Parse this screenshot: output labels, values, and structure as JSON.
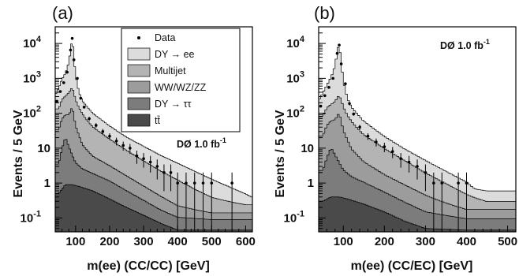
{
  "colors": {
    "DY_ee": "#dcdcdc",
    "Multijet": "#b4b4b4",
    "Dibosons": "#9c9c9c",
    "DY_tautau": "#7c7c7c",
    "ttbar": "#4a4a4a",
    "data": "#000000"
  },
  "chart_data": [
    {
      "type": "stacked-histogram",
      "panel_label": "(a)",
      "xlabel": "m(ee) (CC/CC) [GeV]",
      "ylabel": "Events / 5 GeV",
      "xlim": [
        40,
        620
      ],
      "ylim": [
        0.04,
        30000
      ],
      "log_y": true,
      "xticks": [
        100,
        200,
        300,
        400,
        500,
        600
      ],
      "yticks": [
        {
          "value": 0.1,
          "base": "10",
          "exp": "-1"
        },
        {
          "value": 1,
          "base": "1",
          "exp": ""
        },
        {
          "value": 10,
          "base": "10",
          "exp": ""
        },
        {
          "value": 100,
          "base": "10",
          "exp": "2"
        },
        {
          "value": 1000,
          "base": "10",
          "exp": "3"
        },
        {
          "value": 10000,
          "base": "10",
          "exp": "4"
        }
      ],
      "bin_width_gev": 5,
      "lumi": {
        "text": "DØ 1.0 fb",
        "sup": "-1",
        "position": "middle-right"
      },
      "legend": {
        "position": "top-right",
        "entries": [
          {
            "label": "Data",
            "marker": "point",
            "color_key": "data"
          },
          {
            "label": "DY → ee",
            "marker": "box",
            "color_key": "DY_ee"
          },
          {
            "label": "Multijet",
            "marker": "box",
            "color_key": "Multijet"
          },
          {
            "label": "WW/WZ/ZZ",
            "marker": "box",
            "color_key": "Dibosons"
          },
          {
            "label": "DY → ττ",
            "marker": "box",
            "color_key": "DY_tautau"
          },
          {
            "label": "tt̄",
            "marker": "box",
            "color_key": "ttbar"
          }
        ]
      },
      "series": [
        {
          "name": "tt̄",
          "color_key": "ttbar",
          "x": [
            50,
            70,
            90,
            110,
            150,
            200,
            250,
            300,
            350,
            400,
            500
          ],
          "y": [
            0.5,
            0.9,
            0.9,
            0.8,
            0.6,
            0.35,
            0.2,
            0.12,
            0.07,
            0.045,
            0.045
          ]
        },
        {
          "name": "DY → ττ",
          "color_key": "DY_tautau",
          "x": [
            50,
            60,
            70,
            80,
            100,
            120,
            150,
            200,
            250,
            300,
            350,
            400,
            500
          ],
          "y": [
            3,
            9,
            20,
            10,
            3,
            1.8,
            1.3,
            0.8,
            0.4,
            0.2,
            0.1,
            0.06,
            0.045
          ]
        },
        {
          "name": "WW/WZ/ZZ",
          "color_key": "Dibosons",
          "x": [
            50,
            60,
            70,
            80,
            90,
            100,
            120,
            150,
            200,
            250,
            300,
            350,
            400,
            500
          ],
          "y": [
            30,
            60,
            70,
            80,
            150,
            40,
            10,
            4,
            2,
            1,
            0.5,
            0.25,
            0.12,
            0.05
          ]
        },
        {
          "name": "Multijet",
          "color_key": "Multijet",
          "x": [
            50,
            60,
            70,
            80,
            85,
            90,
            95,
            100,
            110,
            130,
            150,
            200,
            250,
            300,
            350,
            400,
            450,
            500,
            600
          ],
          "y": [
            100,
            180,
            220,
            300,
            350,
            400,
            300,
            200,
            120,
            60,
            35,
            15,
            7,
            3.5,
            1.8,
            1,
            0.5,
            0.25,
            0.1
          ]
        },
        {
          "name": "DY → ee",
          "color_key": "DY_ee",
          "x": [
            40,
            50,
            60,
            70,
            75,
            80,
            85,
            88,
            90,
            92,
            95,
            100,
            110,
            120,
            150,
            200,
            250,
            300,
            350,
            400,
            450,
            500,
            550,
            600,
            620
          ],
          "y": [
            200,
            400,
            700,
            1100,
            1600,
            2600,
            6000,
            10000,
            14000,
            9000,
            3500,
            1000,
            250,
            130,
            60,
            25,
            12,
            7,
            4,
            2.5,
            1.5,
            0.9,
            0.5,
            0.25,
            0.15
          ]
        }
      ],
      "data_points": {
        "x": [
          45,
          55,
          65,
          75,
          85,
          90,
          95,
          105,
          115,
          125,
          140,
          160,
          180,
          200,
          220,
          240,
          260,
          280,
          300,
          320,
          340,
          360,
          380,
          400,
          425,
          450,
          475,
          500,
          560
        ],
        "y": [
          220,
          420,
          750,
          1500,
          6500,
          14000,
          3400,
          1000,
          270,
          150,
          70,
          45,
          30,
          22,
          16,
          12,
          10,
          6,
          5,
          4,
          3,
          2,
          2,
          1,
          1,
          1,
          1,
          1,
          1
        ]
      }
    },
    {
      "type": "stacked-histogram",
      "panel_label": "(b)",
      "xlabel": "m(ee) (CC/EC) [GeV]",
      "ylabel": "Events / 5 GeV",
      "xlim": [
        40,
        520
      ],
      "ylim": [
        0.04,
        30000
      ],
      "log_y": true,
      "xticks": [
        100,
        200,
        300,
        400,
        500
      ],
      "yticks": [
        {
          "value": 0.1,
          "base": "10",
          "exp": "-1"
        },
        {
          "value": 1,
          "base": "1",
          "exp": ""
        },
        {
          "value": 10,
          "base": "10",
          "exp": ""
        },
        {
          "value": 100,
          "base": "10",
          "exp": "2"
        },
        {
          "value": 1000,
          "base": "10",
          "exp": "3"
        },
        {
          "value": 10000,
          "base": "10",
          "exp": "4"
        }
      ],
      "bin_width_gev": 5,
      "lumi": {
        "text": "DØ 1.0 fb",
        "sup": "-1",
        "position": "top-right"
      },
      "series": [
        {
          "name": "tt̄",
          "color_key": "ttbar",
          "x": [
            50,
            70,
            90,
            110,
            150,
            200,
            250,
            300,
            400
          ],
          "y": [
            0.3,
            0.4,
            0.4,
            0.35,
            0.25,
            0.15,
            0.08,
            0.05,
            0.045
          ]
        },
        {
          "name": "DY → ττ",
          "color_key": "DY_tautau",
          "x": [
            50,
            60,
            70,
            80,
            100,
            120,
            150,
            200,
            250,
            300,
            400
          ],
          "y": [
            2,
            5,
            10,
            6,
            2,
            1.2,
            0.8,
            0.4,
            0.2,
            0.1,
            0.05
          ]
        },
        {
          "name": "WW/WZ/ZZ",
          "color_key": "Dibosons",
          "x": [
            50,
            60,
            70,
            80,
            90,
            100,
            120,
            150,
            200,
            250,
            300,
            350,
            400
          ],
          "y": [
            20,
            40,
            50,
            60,
            100,
            30,
            8,
            3,
            1.2,
            0.6,
            0.3,
            0.15,
            0.08
          ]
        },
        {
          "name": "Multijet",
          "color_key": "Multijet",
          "x": [
            50,
            60,
            70,
            80,
            85,
            90,
            95,
            100,
            110,
            130,
            150,
            200,
            250,
            300,
            350,
            400,
            450
          ],
          "y": [
            60,
            100,
            120,
            150,
            200,
            220,
            180,
            120,
            70,
            35,
            20,
            8,
            3.5,
            1.5,
            0.7,
            0.3,
            0.12
          ]
        },
        {
          "name": "DY → ee",
          "color_key": "DY_ee",
          "x": [
            40,
            50,
            60,
            70,
            75,
            80,
            85,
            88,
            90,
            92,
            95,
            100,
            110,
            120,
            150,
            200,
            250,
            300,
            350,
            400,
            420
          ],
          "y": [
            150,
            300,
            500,
            900,
            1300,
            2200,
            5000,
            8000,
            9000,
            6000,
            2500,
            700,
            180,
            90,
            35,
            12,
            5,
            2.5,
            1.2,
            0.6,
            0.3
          ]
        }
      ],
      "data_points": {
        "x": [
          45,
          55,
          65,
          75,
          85,
          90,
          95,
          105,
          115,
          125,
          140,
          160,
          180,
          200,
          220,
          240,
          260,
          280,
          300,
          320,
          340,
          380,
          400
        ],
        "y": [
          160,
          320,
          550,
          1000,
          5200,
          9000,
          2600,
          700,
          190,
          95,
          40,
          22,
          15,
          11,
          8,
          5,
          4,
          3,
          2,
          1,
          1,
          1,
          1
        ]
      }
    }
  ]
}
